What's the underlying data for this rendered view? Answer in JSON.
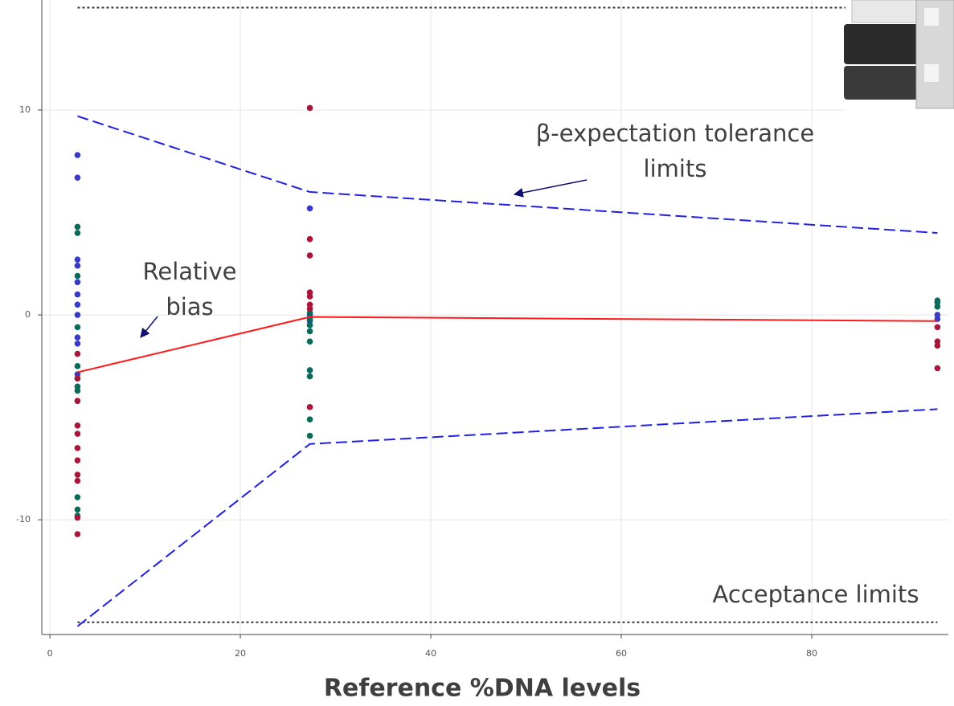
{
  "chart_data": {
    "type": "scatter",
    "x_label": "Reference %DNA levels",
    "xlim": [
      -0.85,
      94.35
    ],
    "ylim": [
      -15.6,
      15.37
    ],
    "xticks": [
      0,
      20,
      40,
      60,
      80
    ],
    "yticks": [
      -10,
      0,
      10
    ],
    "grid": true,
    "series": [
      {
        "color": "#3a3ac8",
        "x": [
          2.9,
          2.9,
          2.9,
          2.9,
          2.9,
          2.9,
          2.9,
          2.9,
          2.9,
          2.9,
          2.9,
          2.9,
          27.3,
          27.3,
          27.3,
          93.2,
          93.2
        ],
        "values": [
          7.8,
          6.7,
          2.7,
          2.4,
          1.6,
          1.0,
          0.5,
          0,
          -1.1,
          -1.4,
          -2.9,
          -4.2,
          5.2,
          0,
          -0.3,
          0,
          -0.2
        ]
      },
      {
        "color": "#0b6b5a",
        "x": [
          2.9,
          2.9,
          2.9,
          2.9,
          2.9,
          2.9,
          2.9,
          2.9,
          2.9,
          2.9,
          2.9,
          27.3,
          27.3,
          27.3,
          27.3,
          27.3,
          27.3,
          27.3,
          27.3,
          27.3,
          93.2,
          93.2,
          93.2
        ],
        "values": [
          4.3,
          4.0,
          1.9,
          -0.6,
          -2.5,
          -3.1,
          -3.5,
          -3.7,
          -8.9,
          -9.5,
          -9.8,
          0.1,
          -0.2,
          -0.5,
          -0.8,
          -1.3,
          -2.7,
          -3.0,
          -5.1,
          -5.9,
          0.7,
          0.6,
          0.4
        ]
      },
      {
        "color": "#a8173a",
        "x": [
          2.9,
          2.9,
          2.9,
          2.9,
          2.9,
          2.9,
          2.9,
          2.9,
          2.9,
          2.9,
          2.9,
          27.3,
          27.3,
          27.3,
          27.3,
          27.3,
          27.3,
          27.3,
          27.3,
          93.2,
          93.2,
          93.2,
          93.2
        ],
        "values": [
          -1.9,
          -3.1,
          -4.2,
          -5.4,
          -5.8,
          -6.5,
          -7.1,
          -7.8,
          -8.1,
          -9.9,
          -10.7,
          10.1,
          3.7,
          2.9,
          1.1,
          0.9,
          0.5,
          0.3,
          -4.5,
          -0.6,
          -1.3,
          -1.5,
          -2.6
        ]
      }
    ],
    "lines": [
      {
        "color": "#2020e0",
        "dash": "14 6",
        "x": [
          2.9,
          27.3,
          93.2
        ],
        "values": [
          9.7,
          6.0,
          4.0
        ]
      },
      {
        "color": "#2020e0",
        "dash": "14 6",
        "x": [
          2.9,
          27.3,
          93.2
        ],
        "values": [
          -15.2,
          -6.3,
          -4.6
        ]
      },
      {
        "color": "#ff1a1a",
        "dash": "none",
        "x": [
          2.9,
          27.3,
          93.2
        ],
        "values": [
          -2.8,
          -0.1,
          -0.3
        ]
      },
      {
        "color": "#333333",
        "dash": "3 3",
        "x": [
          2.9,
          93.2
        ],
        "values": [
          15,
          15
        ]
      },
      {
        "color": "#333333",
        "dash": "3 3",
        "x": [
          2.9,
          93.2
        ],
        "values": [
          -15,
          -15
        ]
      }
    ],
    "annotations": [
      {
        "text": [
          "β-expectation tolerance",
          "limits"
        ]
      },
      {
        "text": [
          "Relative",
          "bias"
        ]
      },
      {
        "text": [
          "Acceptance limits"
        ]
      }
    ]
  }
}
